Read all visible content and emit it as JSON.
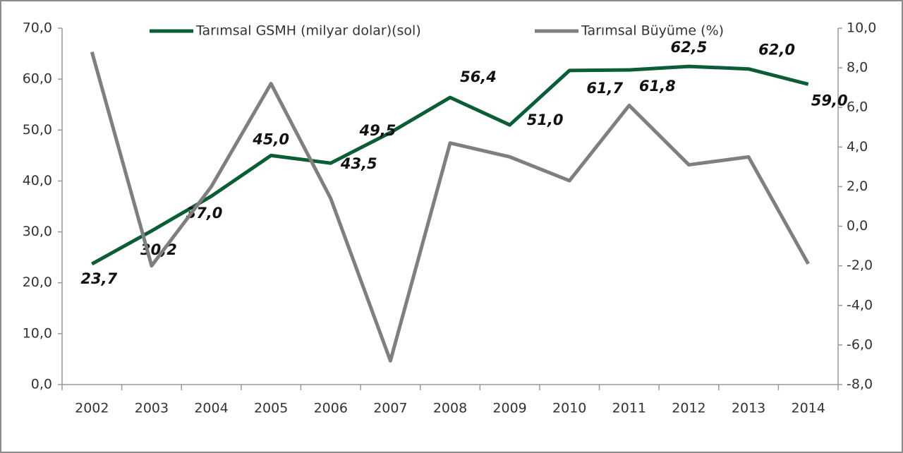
{
  "chart_data": {
    "type": "line",
    "categories": [
      "2002",
      "2003",
      "2004",
      "2005",
      "2006",
      "2007",
      "2008",
      "2009",
      "2010",
      "2011",
      "2012",
      "2013",
      "2014"
    ],
    "series": [
      {
        "name": "Tarımsal GSMH (milyar dolar)(sol)",
        "color": "#0b5d36",
        "values": [
          23.7,
          30.2,
          37.0,
          45.0,
          43.5,
          49.5,
          56.4,
          51.0,
          61.7,
          61.8,
          62.5,
          62.0,
          59.0
        ],
        "value_labels": [
          "23,7",
          "30,2",
          "37,0",
          "45,0",
          "43,5",
          "49,5",
          "56,4",
          "51,0",
          "61,7",
          "61,8",
          "62,5",
          "62,0",
          "59,0"
        ]
      },
      {
        "name": "Tarımsal Büyüme (%)",
        "color": "#7f7f7f",
        "axis": "y2",
        "values": [
          8.8,
          -2.0,
          2.0,
          7.2,
          1.4,
          -6.8,
          4.2,
          3.5,
          2.3,
          6.1,
          3.1,
          3.5,
          -1.9
        ]
      }
    ],
    "ylim": [
      0,
      70
    ],
    "yticks": [
      {
        "value": 0,
        "label": "0,0"
      },
      {
        "value": 10,
        "label": "10,0"
      },
      {
        "value": 20,
        "label": "20,0"
      },
      {
        "value": 30,
        "label": "30,0"
      },
      {
        "value": 40,
        "label": "40,0"
      },
      {
        "value": 50,
        "label": "50,0"
      },
      {
        "value": 60,
        "label": "60,0"
      },
      {
        "value": 70,
        "label": "70,0"
      }
    ],
    "y2lim": [
      -8,
      10
    ],
    "y2ticks": [
      {
        "value": -8,
        "label": "-8,0"
      },
      {
        "value": -6,
        "label": "-6,0"
      },
      {
        "value": -4,
        "label": "-4,0"
      },
      {
        "value": -2,
        "label": "-2,0"
      },
      {
        "value": 0,
        "label": "0,0"
      },
      {
        "value": 2,
        "label": "2,0"
      },
      {
        "value": 4,
        "label": "4,0"
      },
      {
        "value": 6,
        "label": "6,0"
      },
      {
        "value": 8,
        "label": "8,0"
      },
      {
        "value": 10,
        "label": "10,0"
      }
    ],
    "legend": "top",
    "grid": false
  }
}
